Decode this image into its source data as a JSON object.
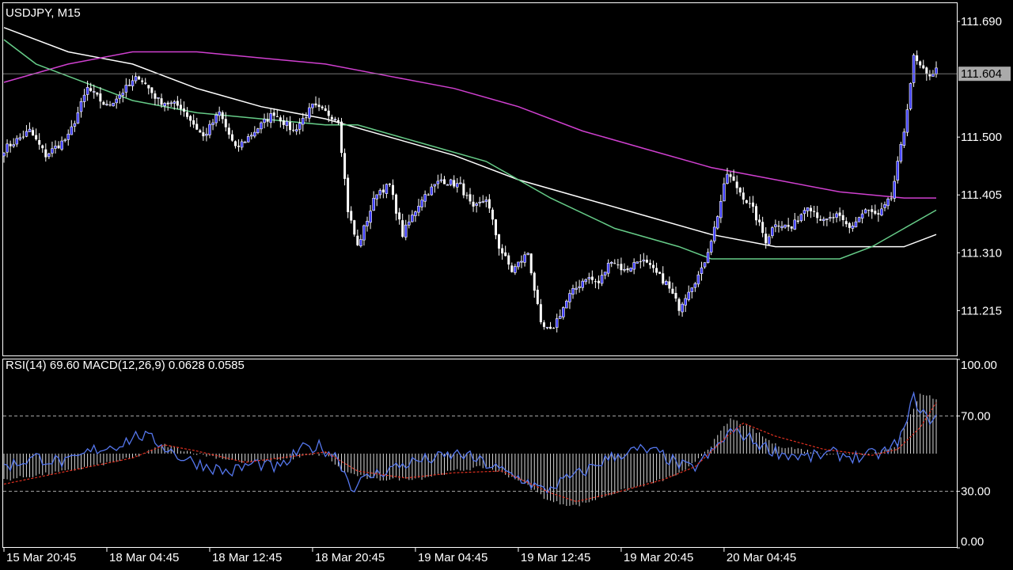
{
  "header": {
    "symbol_label": "USDJPY, M15"
  },
  "indicator": {
    "label": "RSI(14) 69.60 MACD(12,26,9) 0.0628 0.0585"
  },
  "colors": {
    "background": "#000000",
    "axis": "#ffffff",
    "bull_candle": "#3c3cff",
    "bear_candle": "#ffffff",
    "ma_white": "#ffffff",
    "ma_magenta": "#d040d0",
    "ma_green": "#66cc88",
    "rsi_line": "#5577ee",
    "macd_signal": "#e03020",
    "macd_hist": "#d8d8d8",
    "level_line": "#aaaaaa"
  },
  "chart_data": [
    {
      "type": "candlestick",
      "title": "USDJPY, M15",
      "ylim": [
        111.14,
        111.72
      ],
      "y_ticks": [
        "111.690",
        "111.500",
        "111.405",
        "111.310",
        "111.215"
      ],
      "current_price_label": "111.604",
      "current_price": 111.604,
      "x_ticks": [
        "15 Mar 20:45",
        "18 Mar 04:45",
        "18 Mar 12:45",
        "18 Mar 20:45",
        "19 Mar 04:45",
        "19 Mar 12:45",
        "19 Mar 20:45",
        "20 Mar 04:45"
      ],
      "grid": false,
      "close_anchors": [
        [
          0,
          111.48
        ],
        [
          8,
          111.51
        ],
        [
          13,
          111.47
        ],
        [
          20,
          111.5
        ],
        [
          26,
          111.58
        ],
        [
          32,
          111.55
        ],
        [
          42,
          111.6
        ],
        [
          48,
          111.56
        ],
        [
          55,
          111.55
        ],
        [
          62,
          111.5
        ],
        [
          67,
          111.54
        ],
        [
          72,
          111.48
        ],
        [
          78,
          111.51
        ],
        [
          84,
          111.54
        ],
        [
          90,
          111.51
        ],
        [
          96,
          111.55
        ],
        [
          100,
          111.54
        ],
        [
          104,
          111.53
        ],
        [
          107,
          111.38
        ],
        [
          110,
          111.32
        ],
        [
          116,
          111.41
        ],
        [
          120,
          111.42
        ],
        [
          124,
          111.34
        ],
        [
          130,
          111.4
        ],
        [
          136,
          111.43
        ],
        [
          142,
          111.42
        ],
        [
          146,
          111.38
        ],
        [
          150,
          111.4
        ],
        [
          154,
          111.32
        ],
        [
          158,
          111.28
        ],
        [
          163,
          111.31
        ],
        [
          167,
          111.19
        ],
        [
          170,
          111.18
        ],
        [
          176,
          111.24
        ],
        [
          181,
          111.27
        ],
        [
          185,
          111.26
        ],
        [
          189,
          111.3
        ],
        [
          193,
          111.28
        ],
        [
          198,
          111.3
        ],
        [
          202,
          111.28
        ],
        [
          206,
          111.26
        ],
        [
          210,
          111.22
        ],
        [
          213,
          111.25
        ],
        [
          217,
          111.28
        ],
        [
          221,
          111.35
        ],
        [
          225,
          111.44
        ],
        [
          229,
          111.41
        ],
        [
          233,
          111.38
        ],
        [
          237,
          111.33
        ],
        [
          240,
          111.36
        ],
        [
          245,
          111.35
        ],
        [
          250,
          111.39
        ],
        [
          255,
          111.36
        ],
        [
          259,
          111.37
        ],
        [
          263,
          111.35
        ],
        [
          268,
          111.38
        ],
        [
          272,
          111.37
        ],
        [
          276,
          111.4
        ],
        [
          280,
          111.51
        ],
        [
          283,
          111.63
        ],
        [
          287,
          111.6
        ],
        [
          290,
          111.61
        ]
      ],
      "series": [
        {
          "name": "",
          "color": "#ffffff",
          "points": [
            [
              0,
              111.68
            ],
            [
              20,
              111.64
            ],
            [
              40,
              111.62
            ],
            [
              60,
              111.58
            ],
            [
              80,
              111.55
            ],
            [
              100,
              111.53
            ],
            [
              120,
              111.5
            ],
            [
              140,
              111.47
            ],
            [
              160,
              111.43
            ],
            [
              180,
              111.4
            ],
            [
              200,
              111.37
            ],
            [
              220,
              111.34
            ],
            [
              240,
              111.32
            ],
            [
              260,
              111.32
            ],
            [
              280,
              111.32
            ],
            [
              290,
              111.34
            ]
          ]
        },
        {
          "name": "",
          "color": "#d040d0",
          "points": [
            [
              0,
              111.59
            ],
            [
              20,
              111.62
            ],
            [
              40,
              111.64
            ],
            [
              60,
              111.64
            ],
            [
              80,
              111.63
            ],
            [
              100,
              111.62
            ],
            [
              120,
              111.6
            ],
            [
              140,
              111.58
            ],
            [
              160,
              111.55
            ],
            [
              180,
              111.51
            ],
            [
              200,
              111.48
            ],
            [
              220,
              111.45
            ],
            [
              240,
              111.43
            ],
            [
              260,
              111.41
            ],
            [
              280,
              111.4
            ],
            [
              290,
              111.4
            ]
          ]
        },
        {
          "name": "",
          "color": "#66cc88",
          "points": [
            [
              0,
              111.66
            ],
            [
              10,
              111.62
            ],
            [
              20,
              111.6
            ],
            [
              40,
              111.56
            ],
            [
              60,
              111.54
            ],
            [
              80,
              111.53
            ],
            [
              100,
              111.52
            ],
            [
              110,
              111.52
            ],
            [
              130,
              111.49
            ],
            [
              150,
              111.46
            ],
            [
              170,
              111.4
            ],
            [
              190,
              111.35
            ],
            [
              210,
              111.32
            ],
            [
              220,
              111.3
            ],
            [
              240,
              111.3
            ],
            [
              260,
              111.3
            ],
            [
              270,
              111.32
            ],
            [
              280,
              111.35
            ],
            [
              290,
              111.38
            ]
          ]
        }
      ]
    },
    {
      "type": "line",
      "title": "RSI(14) 69.60 MACD(12,26,9) 0.0628 0.0585",
      "ylim": [
        0,
        100
      ],
      "y_ticks": [
        "100.00",
        "70.00",
        "30.00",
        "0.00"
      ],
      "levels": [
        70,
        30
      ],
      "rsi_anchors": [
        [
          0,
          43
        ],
        [
          10,
          48
        ],
        [
          20,
          45
        ],
        [
          28,
          52
        ],
        [
          36,
          55
        ],
        [
          42,
          60
        ],
        [
          48,
          56
        ],
        [
          55,
          48
        ],
        [
          62,
          44
        ],
        [
          70,
          40
        ],
        [
          78,
          45
        ],
        [
          86,
          42
        ],
        [
          92,
          52
        ],
        [
          98,
          54
        ],
        [
          104,
          48
        ],
        [
          108,
          32
        ],
        [
          114,
          38
        ],
        [
          120,
          42
        ],
        [
          128,
          46
        ],
        [
          136,
          48
        ],
        [
          142,
          50
        ],
        [
          148,
          46
        ],
        [
          156,
          40
        ],
        [
          162,
          36
        ],
        [
          168,
          30
        ],
        [
          172,
          34
        ],
        [
          180,
          40
        ],
        [
          186,
          46
        ],
        [
          192,
          50
        ],
        [
          198,
          52
        ],
        [
          204,
          50
        ],
        [
          210,
          44
        ],
        [
          214,
          42
        ],
        [
          220,
          50
        ],
        [
          226,
          62
        ],
        [
          230,
          60
        ],
        [
          236,
          54
        ],
        [
          242,
          50
        ],
        [
          250,
          48
        ],
        [
          258,
          50
        ],
        [
          266,
          48
        ],
        [
          272,
          50
        ],
        [
          276,
          52
        ],
        [
          280,
          62
        ],
        [
          283,
          80
        ],
        [
          287,
          68
        ],
        [
          290,
          69.6
        ]
      ],
      "macd_hist_anchors": [
        [
          0,
          -0.03
        ],
        [
          20,
          -0.02
        ],
        [
          40,
          -0.005
        ],
        [
          50,
          0.01
        ],
        [
          60,
          0.0
        ],
        [
          75,
          -0.01
        ],
        [
          90,
          -0.005
        ],
        [
          100,
          0.0
        ],
        [
          105,
          -0.02
        ],
        [
          115,
          -0.03
        ],
        [
          130,
          -0.028
        ],
        [
          140,
          -0.02
        ],
        [
          150,
          -0.015
        ],
        [
          160,
          -0.03
        ],
        [
          170,
          -0.055
        ],
        [
          178,
          -0.06
        ],
        [
          190,
          -0.045
        ],
        [
          205,
          -0.03
        ],
        [
          212,
          -0.02
        ],
        [
          220,
          0.01
        ],
        [
          226,
          0.04
        ],
        [
          232,
          0.03
        ],
        [
          240,
          0.01
        ],
        [
          255,
          0.0
        ],
        [
          270,
          0.0
        ],
        [
          278,
          0.01
        ],
        [
          285,
          0.07
        ],
        [
          290,
          0.0628
        ]
      ],
      "macd_signal_anchors": [
        [
          0,
          -0.035
        ],
        [
          20,
          -0.02
        ],
        [
          40,
          -0.005
        ],
        [
          50,
          0.01
        ],
        [
          60,
          0.003
        ],
        [
          75,
          -0.01
        ],
        [
          90,
          -0.003
        ],
        [
          100,
          0.002
        ],
        [
          110,
          -0.02
        ],
        [
          125,
          -0.028
        ],
        [
          140,
          -0.022
        ],
        [
          155,
          -0.02
        ],
        [
          170,
          -0.045
        ],
        [
          178,
          -0.055
        ],
        [
          190,
          -0.045
        ],
        [
          205,
          -0.03
        ],
        [
          215,
          -0.015
        ],
        [
          225,
          0.02
        ],
        [
          230,
          0.035
        ],
        [
          240,
          0.02
        ],
        [
          255,
          0.005
        ],
        [
          270,
          -0.002
        ],
        [
          278,
          0.005
        ],
        [
          285,
          0.03
        ],
        [
          290,
          0.0585
        ]
      ]
    }
  ]
}
